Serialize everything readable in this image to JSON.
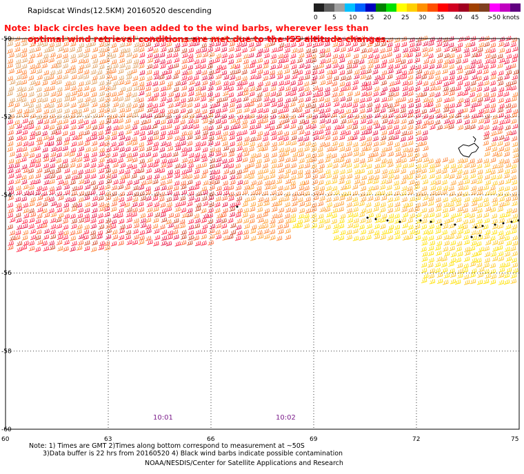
{
  "title": "Rapidscat Winds(12.5KM) 20160520 descending",
  "note_line1": "Note: black circles have been added to the wind barbs, wherever less than",
  "note_line2": "optimal wind retrieval conditions are met due to the ISS altitude changes.",
  "legend": {
    "labels": [
      "0",
      "5",
      "10",
      "15",
      "20",
      "25",
      "30",
      "35",
      "40",
      "45",
      ">50 knots"
    ],
    "colors": [
      "#202020",
      "#606060",
      "#a0a0a0",
      "#00c0ff",
      "#0060ff",
      "#0000c0",
      "#008000",
      "#00e000",
      "#ffff00",
      "#ffd000",
      "#ff9000",
      "#ff5000",
      "#ff0000",
      "#d00020",
      "#a00020",
      "#a04000",
      "#804020",
      "#ff00ff",
      "#c000c0",
      "#600080"
    ]
  },
  "map": {
    "lat_labels": [
      "-50",
      "-52",
      "-54",
      "-56",
      "-58",
      "-60"
    ],
    "lon_labels": [
      "60",
      "63",
      "66",
      "69",
      "72",
      "75"
    ],
    "lat_values": [
      -50,
      -52,
      -54,
      -56,
      -58,
      -60
    ],
    "lon_values": [
      60,
      63,
      66,
      69,
      72,
      75
    ],
    "swath_colors": [
      "#e0a060",
      "#ff6030",
      "#ff2040",
      "#e81040",
      "#d04020",
      "#ff8030",
      "#ffa030",
      "#ffc820",
      "#ffe000"
    ]
  },
  "times": [
    "10:01",
    "10:02"
  ],
  "footer": {
    "line1": "Note: 1) Times are GMT 2)Times along bottom correspond to measurement at ~50S",
    "line2": "3)Data buffer is 22 hrs from 20160520 4) Black wind barbs indicate possible contamination",
    "credit": "NOAA/NESDIS/Center for Satellite Applications and Research"
  }
}
